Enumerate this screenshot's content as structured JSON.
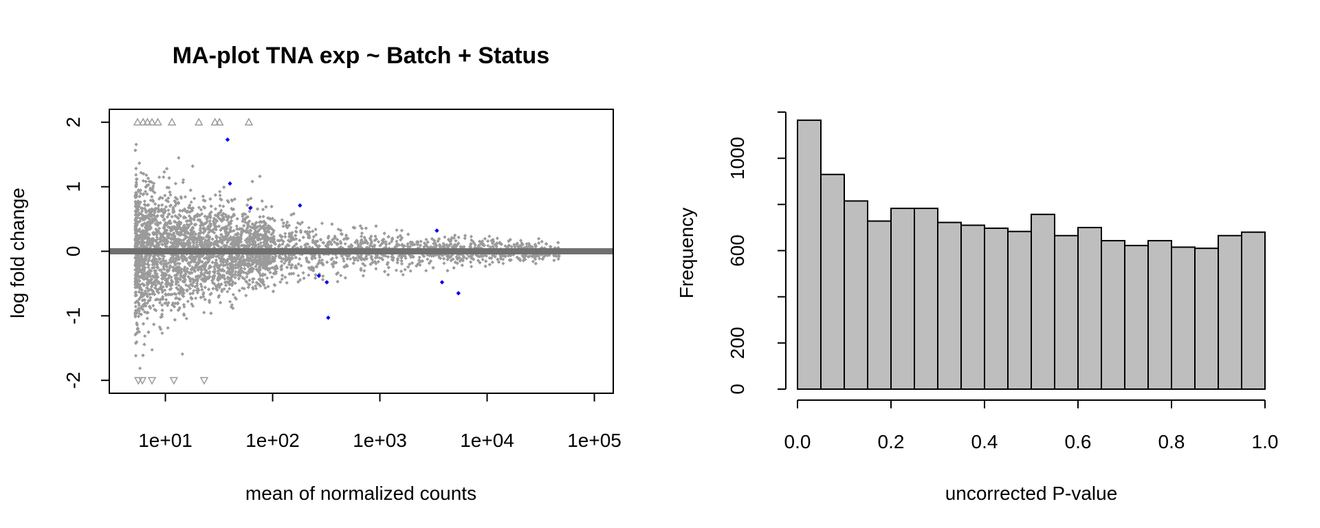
{
  "colors": {
    "points": "#9b9b9b",
    "significant": "#0000ee",
    "zero_line": "#707070",
    "bars": "#bebebe",
    "outline": "#000000"
  },
  "chart_data": [
    {
      "type": "scatter",
      "title": "MA-plot TNA exp ~ Batch + Status",
      "xlabel": "mean of normalized counts",
      "ylabel": "log fold change",
      "x_scale": "log10",
      "xlim": [
        3,
        150000
      ],
      "ylim": [
        -2.2,
        2.2
      ],
      "x_ticks": [
        10,
        100,
        1000,
        10000,
        100000
      ],
      "x_tick_labels": [
        "1e+01",
        "1e+02",
        "1e+03",
        "1e+04",
        "1e+05"
      ],
      "y_ticks": [
        -2,
        -1,
        0,
        1,
        2
      ],
      "y_tick_labels": [
        "-2",
        "-1",
        "0",
        "1",
        "2"
      ],
      "hline": 0,
      "significant_points": [
        {
          "x": 38,
          "y": 1.73
        },
        {
          "x": 40,
          "y": 1.05
        },
        {
          "x": 62,
          "y": 0.67
        },
        {
          "x": 180,
          "y": 0.71
        },
        {
          "x": 3400,
          "y": 0.32
        },
        {
          "x": 330,
          "y": -1.03
        },
        {
          "x": 320,
          "y": -0.48
        },
        {
          "x": 3800,
          "y": -0.48
        },
        {
          "x": 5400,
          "y": -0.65
        },
        {
          "x": 270,
          "y": -0.38
        }
      ],
      "clipped_up_x": [
        5.5,
        6.2,
        6.8,
        7.5,
        8.5,
        11.5,
        20.5,
        29,
        32,
        60
      ],
      "clipped_down_x": [
        5.6,
        6.1,
        7.5,
        12,
        23
      ]
    },
    {
      "type": "bar",
      "xlabel": "uncorrected P-value",
      "ylabel": "Frequency",
      "bin_edges": [
        0.0,
        0.05,
        0.1,
        0.15,
        0.2,
        0.25,
        0.3,
        0.35,
        0.4,
        0.45,
        0.5,
        0.55,
        0.6,
        0.65,
        0.7,
        0.75,
        0.8,
        0.85,
        0.9,
        0.95,
        1.0
      ],
      "values": [
        1165,
        930,
        815,
        728,
        783,
        783,
        722,
        710,
        697,
        683,
        757,
        665,
        700,
        643,
        622,
        643,
        615,
        610,
        665,
        680
      ],
      "xlim": [
        0,
        1
      ],
      "ylim": [
        0,
        1200
      ],
      "x_ticks": [
        0.0,
        0.2,
        0.4,
        0.6,
        0.8,
        1.0
      ],
      "x_tick_labels": [
        "0.0",
        "0.2",
        "0.4",
        "0.6",
        "0.8",
        "1.0"
      ],
      "y_ticks": [
        0,
        200,
        400,
        600,
        800,
        1000,
        1200
      ],
      "y_tick_labels": [
        "0",
        "200",
        "",
        "600",
        "",
        "1000",
        ""
      ]
    }
  ]
}
